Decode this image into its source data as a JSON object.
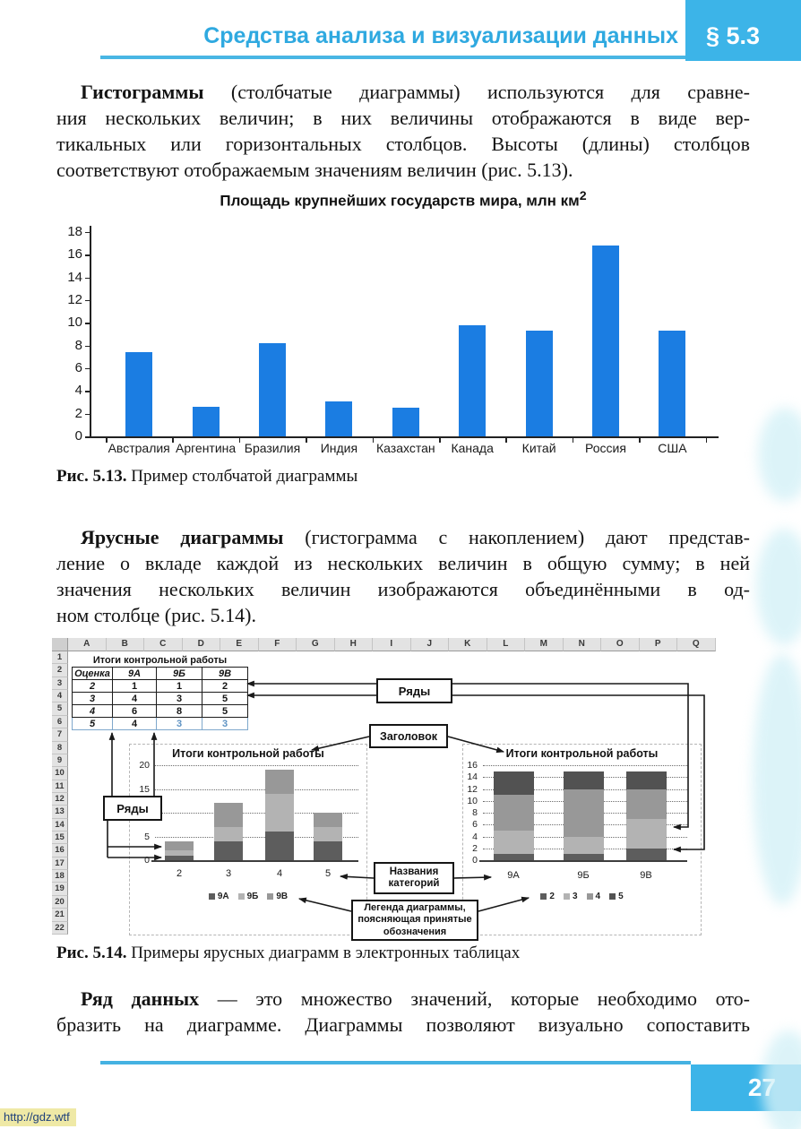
{
  "header": {
    "title": "Средства анализа и визуализации данных",
    "section": "§ 5.3"
  },
  "paragraphs": {
    "p1": {
      "lead": "Гистограммы",
      "lines": [
        " (столбчатые диаграммы) используются для сравне-",
        "ния нескольких величин; в них величины отображаются в виде вер-",
        "тикальных или горизонтальных столбцов. Высоты (длины) столбцов",
        "соответствуют отображаемым значениям величин (рис. 5.13)."
      ],
      "last_line_full": false
    },
    "p2": {
      "lead": "Ярусные диаграммы",
      "lines": [
        " (гистограмма с накоплением) дают представ-",
        "ление о вкладе каждой из нескольких величин в общую сумму; в ней",
        "значения нескольких величин изображаются объединёнными в од-",
        "ном столбце (рис. 5.14)."
      ],
      "last_line_full": false
    },
    "p3": {
      "lead": "Ряд данных",
      "lines": [
        " — это множество значений, которые необходимо ото-",
        "бразить на диаграмме. Диаграммы позволяют визуально сопоставить"
      ],
      "last_line_full": true
    }
  },
  "fig513": {
    "caption_label": "Рис. 5.13.",
    "caption_text": "Пример столбчатой диаграммы"
  },
  "fig514": {
    "caption_label": "Рис. 5.14.",
    "caption_text": "Примеры ярусных диаграмм в электронных таблицах",
    "sheet": {
      "column_letters": [
        "A",
        "B",
        "C",
        "D",
        "E",
        "F",
        "G",
        "H",
        "I",
        "J",
        "K",
        "L",
        "M",
        "N",
        "O",
        "P",
        "Q"
      ],
      "row_count": 22,
      "table": {
        "title": "Итоги контрольной работы",
        "headers": [
          "Оценка",
          "9А",
          "9Б",
          "9В"
        ],
        "rows": [
          [
            "2",
            "1",
            "1",
            "2"
          ],
          [
            "3",
            "4",
            "3",
            "5"
          ],
          [
            "4",
            "6",
            "8",
            "5"
          ],
          [
            "5",
            "4",
            "3",
            "3"
          ]
        ]
      }
    },
    "annotations": {
      "series_box_top": "Ряды",
      "series_box_left": "Ряды",
      "title_box": "Заголовок",
      "categories_box": "Названия категорий",
      "legend_box": "Легенда диаграммы, поясняющая принятые обозначения"
    }
  },
  "chart_data": [
    {
      "type": "bar",
      "title": "Площадь крупнейших государств мира, млн км",
      "title_superscript": "2",
      "categories": [
        "Австралия",
        "Аргентина",
        "Бразилия",
        "Индия",
        "Казахстан",
        "Канада",
        "Китай",
        "Россия",
        "США"
      ],
      "values": [
        7.4,
        2.6,
        8.2,
        3.1,
        2.5,
        9.8,
        9.3,
        16.8,
        9.3
      ],
      "xlabel": "",
      "ylabel": "",
      "ylim": [
        0,
        18
      ],
      "ytick_step": 2,
      "grid": false,
      "legend": false,
      "bar_color": "#1b7de2"
    },
    {
      "type": "stacked-bar",
      "title": "Итоги контрольной работы",
      "categories": [
        "2",
        "3",
        "4",
        "5"
      ],
      "series": [
        {
          "name": "9А",
          "values": [
            1,
            4,
            6,
            4
          ]
        },
        {
          "name": "9Б",
          "values": [
            1,
            3,
            8,
            3
          ]
        },
        {
          "name": "9В",
          "values": [
            2,
            5,
            5,
            3
          ]
        }
      ],
      "ylim": [
        0,
        20
      ],
      "ytick_step": 5,
      "grid": true,
      "legend_position": "bottom",
      "series_colors": [
        "#5d5d5d",
        "#b3b3b3",
        "#989898"
      ]
    },
    {
      "type": "stacked-bar",
      "title": "Итоги контрольной работы",
      "categories": [
        "9А",
        "9Б",
        "9В"
      ],
      "series": [
        {
          "name": "2",
          "values": [
            1,
            1,
            2
          ]
        },
        {
          "name": "3",
          "values": [
            4,
            3,
            5
          ]
        },
        {
          "name": "4",
          "values": [
            6,
            8,
            5
          ]
        },
        {
          "name": "5",
          "values": [
            4,
            3,
            3
          ]
        }
      ],
      "ylim": [
        0,
        16
      ],
      "ytick_step": 2,
      "grid": true,
      "legend_position": "bottom",
      "series_colors": [
        "#5d5d5d",
        "#b3b3b3",
        "#989898",
        "#525252"
      ]
    }
  ],
  "footer": {
    "page_number": "27",
    "url": "http://gdz.wtf"
  },
  "colors": {
    "accent_text": "#2fa9e0",
    "accent_box": "#3cb4e8",
    "bar_blue": "#1b7de2"
  }
}
